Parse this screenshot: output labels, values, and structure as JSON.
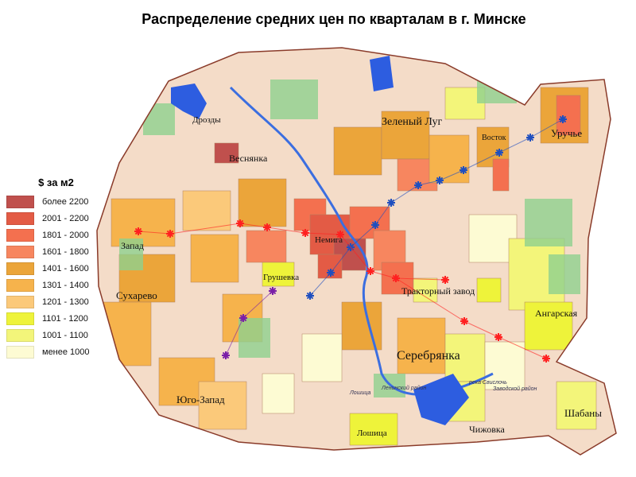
{
  "title": "Распределение средних цен по кварталам в г. Минске",
  "legend": {
    "title": "$ за м2",
    "items": [
      {
        "label": "более 2200",
        "color": "#c0504d"
      },
      {
        "label": "2001 - 2200",
        "color": "#e35b45"
      },
      {
        "label": "1801 - 2000",
        "color": "#f4704f"
      },
      {
        "label": "1601 - 1800",
        "color": "#f7865f"
      },
      {
        "label": "1401 - 1600",
        "color": "#eba53a"
      },
      {
        "label": "1301 - 1400",
        "color": "#f6b34c"
      },
      {
        "label": "1201 - 1300",
        "color": "#fbc97a"
      },
      {
        "label": "1101 - 1200",
        "color": "#eef33a"
      },
      {
        "label": "1001 - 1100",
        "color": "#f3f57a"
      },
      {
        "label": "менее 1000",
        "color": "#fdfbd3"
      }
    ]
  },
  "districts": [
    {
      "name": "Дрозды"
    },
    {
      "name": "Веснянка"
    },
    {
      "name": "Зеленый Луг"
    },
    {
      "name": "Восток"
    },
    {
      "name": "Уручье"
    },
    {
      "name": "Запад"
    },
    {
      "name": "Немига"
    },
    {
      "name": "Грушевка"
    },
    {
      "name": "Сухарево"
    },
    {
      "name": "Тракторный завод"
    },
    {
      "name": "Ангарская"
    },
    {
      "name": "Серебрянка"
    },
    {
      "name": "Юго-Запад"
    },
    {
      "name": "Лошица"
    },
    {
      "name": "Чижовка"
    },
    {
      "name": "Шабаны"
    }
  ],
  "minor_labels": [
    "Заводской район",
    "Ленинский район",
    "Лошица",
    "река Свислочь"
  ],
  "metro_lines": [
    {
      "color": "#1f4fbf"
    },
    {
      "color": "#ff2020"
    },
    {
      "color": "#7a1fa8"
    }
  ]
}
